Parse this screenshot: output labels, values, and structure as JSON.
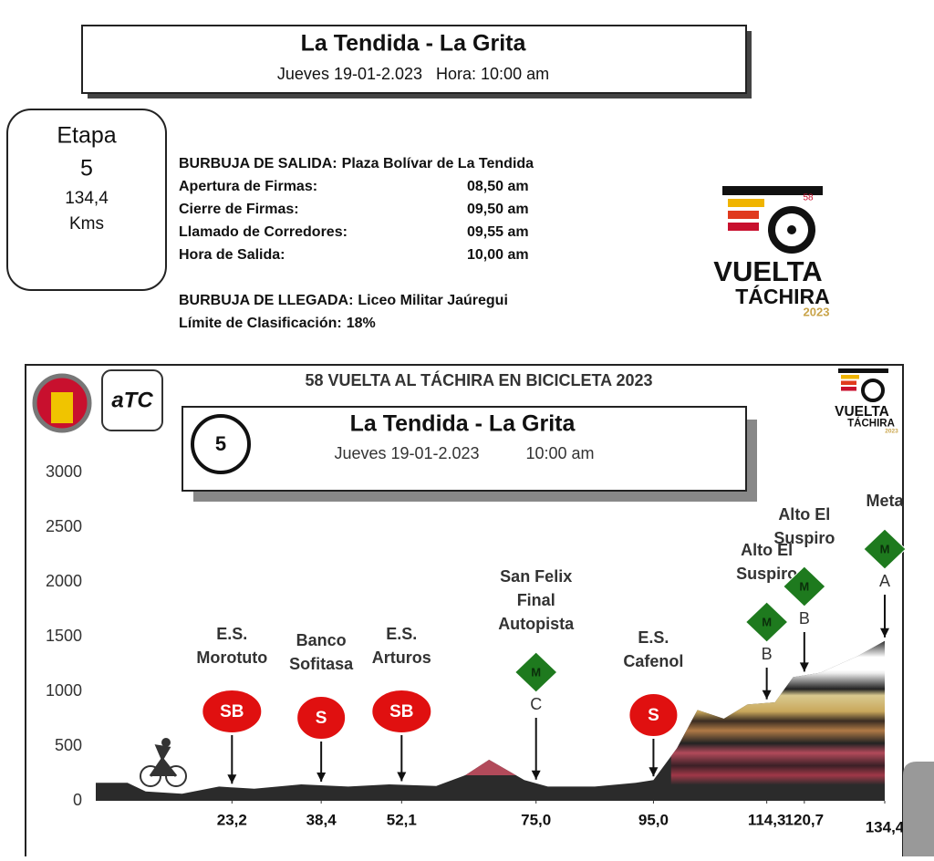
{
  "header": {
    "title": "La Tendida - La Grita",
    "subtitle": "Jueves 19-01-2.023   Hora: 10:00 am"
  },
  "stage_box": {
    "label": "Etapa",
    "number": "5",
    "distance": "134,4",
    "unit": "Kms"
  },
  "info": {
    "rows": [
      [
        "BURBUJA DE SALIDA:",
        "Plaza Bolívar de La Tendida"
      ],
      [
        "Apertura de Firmas:",
        "08,50 am"
      ],
      [
        "Cierre de Firmas:",
        "09,50 am"
      ],
      [
        "Llamado de Corredores:",
        "09,55 am"
      ],
      [
        "Hora de Salida:",
        "10,00 am"
      ]
    ],
    "arrival": [
      "BURBUJA DE LLEGADA:",
      "Liceo Militar Jaúregui"
    ],
    "limit": [
      "Límite de Clasificación:",
      "18%"
    ]
  },
  "logo": {
    "line1": "VUELTA",
    "line2": "TÁCHIRA",
    "year": "2023",
    "badge": "58"
  },
  "chart_data": {
    "type": "area",
    "title": "58 VUELTA AL TÁCHIRA EN BICICLETA 2023",
    "sponsor": "aTC",
    "stage": "5",
    "route": "La Tendida - La Grita",
    "date": "Jueves 19-01-2.023",
    "time": "10:00 am",
    "color": "#2b2b2b",
    "x": [
      0,
      5.4,
      8.5,
      14.7,
      21,
      27,
      35,
      43,
      50,
      58,
      63,
      67,
      73,
      77,
      85,
      92,
      95,
      99,
      102.5,
      107,
      111,
      115.7,
      118.8,
      123.4,
      129.7,
      134.4
    ],
    "values": [
      165,
      165,
      85,
      65,
      130,
      110,
      150,
      130,
      150,
      135,
      235,
      375,
      190,
      130,
      130,
      165,
      190,
      480,
      830,
      750,
      880,
      900,
      1130,
      1170,
      1320,
      1460
    ],
    "xlim": [
      0,
      134.4
    ],
    "ylim": [
      0,
      3000
    ],
    "yticks": [
      0,
      500,
      1000,
      1500,
      2000,
      2500,
      3000
    ],
    "xticks": [
      {
        "value": 23.2,
        "label": "23,2"
      },
      {
        "value": 38.4,
        "label": "38,4"
      },
      {
        "value": 52.1,
        "label": "52,1"
      },
      {
        "value": 75.0,
        "label": "75,0"
      },
      {
        "value": 95.0,
        "label": "95,0"
      },
      {
        "value": 114.3,
        "label": "114,3"
      },
      {
        "value": 120.7,
        "label": "120,7"
      },
      {
        "value": 134.4,
        "label": "134,4"
      }
    ],
    "annotations": [
      {
        "x": 23.2,
        "text": [
          "E.S.",
          "Morotuto"
        ],
        "badge": "SB"
      },
      {
        "x": 38.4,
        "text": [
          "Banco",
          "Sofitasa"
        ],
        "badge": "S"
      },
      {
        "x": 52.1,
        "text": [
          "E.S.",
          "Arturos"
        ],
        "badge": "SB"
      },
      {
        "x": 75.0,
        "text": [
          "San Felix",
          "Final",
          "Autopista"
        ],
        "badge": "M",
        "category": "C"
      },
      {
        "x": 95.0,
        "text": [
          "E.S.",
          "Cafenol"
        ],
        "badge": "S"
      },
      {
        "x": 114.3,
        "text": [
          "Alto El",
          "Suspiro"
        ],
        "badge": "M",
        "category": "B"
      },
      {
        "x": 120.7,
        "text": [
          "Alto El",
          "Suspiro"
        ],
        "badge": "M",
        "category": "B"
      },
      {
        "x": 134.4,
        "text": [
          "Meta"
        ],
        "badge": "M",
        "category": "A"
      }
    ]
  }
}
